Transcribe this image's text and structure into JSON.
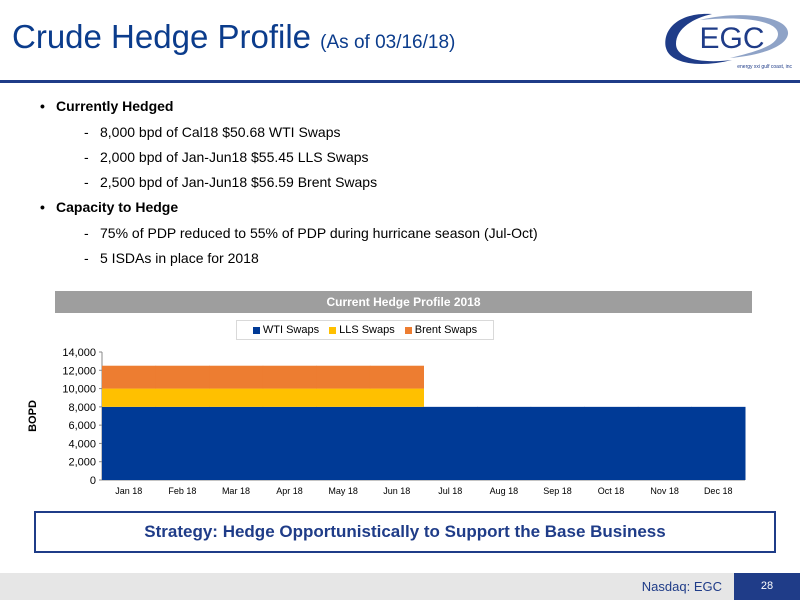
{
  "header": {
    "title": "Crude Hedge Profile",
    "subtitle": "(As of 03/16/18)",
    "logo_text": "EGC",
    "logo_tagline": "energy xxi gulf coast, inc"
  },
  "bullets": [
    {
      "label": "Currently Hedged",
      "items": [
        "8,000 bpd of Cal18 $50.68 WTI Swaps",
        "2,000 bpd of Jan-Jun18 $55.45 LLS Swaps",
        "2,500 bpd of Jan-Jun18 $56.59 Brent Swaps"
      ]
    },
    {
      "label": "Capacity to Hedge",
      "items": [
        "75% of PDP reduced to 55% of PDP during hurricane season (Jul-Oct)",
        "5 ISDAs in place for 2018"
      ]
    }
  ],
  "chart_data": {
    "type": "bar",
    "stacked": true,
    "title": "Current Hedge Profile 2018",
    "xlabel": "",
    "ylabel": "BOPD",
    "ylim": [
      0,
      14000
    ],
    "yticks": [
      "14,000",
      "12,000",
      "10,000",
      "8,000",
      "6,000",
      "4,000",
      "2,000",
      "0"
    ],
    "categories": [
      "Jan 18",
      "Feb 18",
      "Mar 18",
      "Apr 18",
      "May 18",
      "Jun 18",
      "Jul 18",
      "Aug 18",
      "Sep 18",
      "Oct 18",
      "Nov 18",
      "Dec 18"
    ],
    "series": [
      {
        "name": "WTI Swaps",
        "color": "#003a96",
        "values": [
          8000,
          8000,
          8000,
          8000,
          8000,
          8000,
          8000,
          8000,
          8000,
          8000,
          8000,
          8000
        ]
      },
      {
        "name": "LLS Swaps",
        "color": "#ffc000",
        "values": [
          2000,
          2000,
          2000,
          2000,
          2000,
          2000,
          0,
          0,
          0,
          0,
          0,
          0
        ]
      },
      {
        "name": "Brent Swaps",
        "color": "#ed7d31",
        "values": [
          2500,
          2500,
          2500,
          2500,
          2500,
          2500,
          0,
          0,
          0,
          0,
          0,
          0
        ]
      }
    ],
    "legend_position": "top",
    "grid": false
  },
  "strategy_text": "Strategy: Hedge Opportunistically to Support the Base Business",
  "footer": {
    "ticker": "Nasdaq: EGC",
    "page_number": "28"
  }
}
